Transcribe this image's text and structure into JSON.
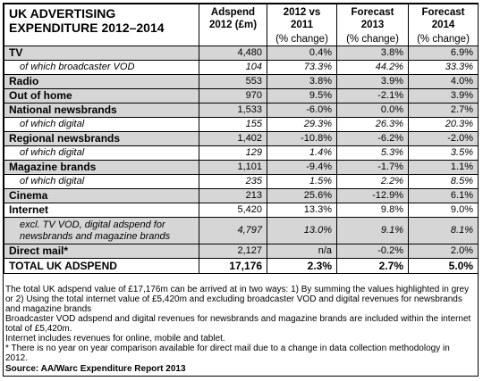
{
  "header": {
    "title": "UK ADVERTISING EXPENDITURE 2012–2014",
    "col1": "Adspend 2012 (£m)",
    "col2": "2012 vs 2011",
    "col2_sub": "(% change)",
    "col3": "Forecast 2013",
    "col3_sub": "(% change)",
    "col4": "Forecast 2014",
    "col4_sub": "(% change)"
  },
  "rows": [
    {
      "label": "TV",
      "adspend": "4,480",
      "chg2012": "0.4%",
      "f2013": "3.8%",
      "f2014": "6.9%"
    },
    {
      "label": "of which broadcaster VOD",
      "adspend": "104",
      "chg2012": "73.3%",
      "f2013": "44.2%",
      "f2014": "33.3%"
    },
    {
      "label": "Radio",
      "adspend": "553",
      "chg2012": "3.8%",
      "f2013": "3.9%",
      "f2014": "4.0%"
    },
    {
      "label": "Out of home",
      "adspend": "970",
      "chg2012": "9.5%",
      "f2013": "-2.1%",
      "f2014": "3.9%"
    },
    {
      "label": "National newsbrands",
      "adspend": "1,533",
      "chg2012": "-6.0%",
      "f2013": "0.0%",
      "f2014": "2.7%"
    },
    {
      "label": "of which digital",
      "adspend": "155",
      "chg2012": "29.3%",
      "f2013": "26.3%",
      "f2014": "20.3%"
    },
    {
      "label": "Regional newsbrands",
      "adspend": "1,402",
      "chg2012": "-10.8%",
      "f2013": "-6.2%",
      "f2014": "-2.0%"
    },
    {
      "label": "of which digital",
      "adspend": "129",
      "chg2012": "1.4%",
      "f2013": "5.3%",
      "f2014": "3.5%"
    },
    {
      "label": "Magazine brands",
      "adspend": "1,101",
      "chg2012": "-9.4%",
      "f2013": "-1.7%",
      "f2014": "1.1%"
    },
    {
      "label": "of which digital",
      "adspend": "235",
      "chg2012": "1.5%",
      "f2013": "2.2%",
      "f2014": "8.5%"
    },
    {
      "label": "Cinema",
      "adspend": "213",
      "chg2012": "25.6%",
      "f2013": "-12.9%",
      "f2014": "6.1%"
    },
    {
      "label": "Internet",
      "adspend": "5,420",
      "chg2012": "13.3%",
      "f2013": "9.8%",
      "f2014": "9.0%"
    },
    {
      "label": "excl. TV VOD, digital adspend for newsbrands and magazine brands",
      "adspend": "4,797",
      "chg2012": "13.0%",
      "f2013": "9.1%",
      "f2014": "8.1%"
    },
    {
      "label": "Direct mail*",
      "adspend": "2,127",
      "chg2012": "n/a",
      "f2013": "-0.2%",
      "f2014": "2.0%"
    }
  ],
  "total": {
    "label": "TOTAL UK ADSPEND",
    "adspend": "17,176",
    "chg2012": "2.3%",
    "f2013": "2.7%",
    "f2014": "5.0%"
  },
  "notes": {
    "n1": "The total UK adspend value of £17,176m can be arrived at in two ways: 1) By summing the values highlighted in grey or 2) Using the total internet value of £5,420m and excluding broadcaster VOD and digital revenues for newsbrands and magazine brands",
    "n2": "Broadcaster VOD adspend and digital revenues for newsbrands and magazine brands are included within the internet total of £5,420m.",
    "n3": "Internet includes revenues for online, mobile and tablet.",
    "n4": "* There is no year on year comparison available for direct mail due to a change in data collection methodology in 2012.",
    "source": "Source: AA/Warc Expenditure Report 2013"
  }
}
